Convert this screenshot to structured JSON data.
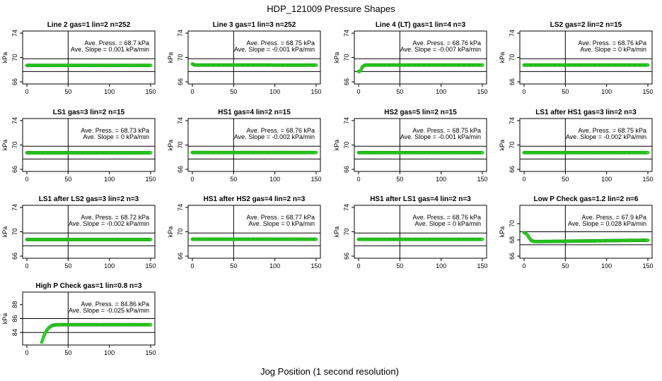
{
  "title": "HDP_121009  Pressure Shapes",
  "xlabel": "Jog Position (1 second resolution)",
  "colors": {
    "points": "#33dd22",
    "point_stroke": "#119911",
    "lines": "#000000"
  },
  "chart_data": [
    {
      "type": "scatter",
      "title": "Line 2 gas=1 lin=2 n=252",
      "ylabel": "kPa",
      "xlim": [
        0,
        150
      ],
      "ylim": [
        66,
        74
      ],
      "x_ticks": [
        0,
        50,
        100,
        150
      ],
      "y_ticks": [
        66,
        70,
        74
      ],
      "hlines": [
        69.8,
        67.7
      ],
      "vline": 50,
      "annotation": [
        "Ave. Press. = 68.7  kPa",
        "Ave. Slope = 0.001  kPa/min"
      ],
      "series": [
        {
          "x": [
            0,
            150
          ],
          "y": [
            68.7,
            68.7
          ]
        }
      ]
    },
    {
      "type": "scatter",
      "title": "Line 3 gas=1 lin=3 n=252",
      "ylabel": "kPa",
      "xlim": [
        0,
        150
      ],
      "ylim": [
        66,
        74
      ],
      "x_ticks": [
        0,
        50,
        100,
        150
      ],
      "y_ticks": [
        66,
        70,
        74
      ],
      "hlines": [
        69.8,
        67.7
      ],
      "vline": 50,
      "annotation": [
        "Ave. Press. = 68.75  kPa",
        "Ave. Slope = -0.001  kPa/min"
      ],
      "series": [
        {
          "x": [
            0,
            1,
            2,
            3,
            4,
            150
          ],
          "y": [
            68.95,
            68.85,
            68.8,
            68.78,
            68.76,
            68.75
          ]
        }
      ]
    },
    {
      "type": "scatter",
      "title": "Line 4 (LT) gas=1 lin=4 n=3",
      "ylabel": "kPa",
      "xlim": [
        0,
        150
      ],
      "ylim": [
        66,
        74
      ],
      "x_ticks": [
        0,
        50,
        100,
        150
      ],
      "y_ticks": [
        66,
        70,
        74
      ],
      "hlines": [
        69.8,
        67.7
      ],
      "vline": 50,
      "annotation": [
        "Ave. Press. = 68.76  kPa",
        "Ave. Slope = -0.007  kPa/min"
      ],
      "series": [
        {
          "x": [
            0,
            1,
            2,
            3,
            4,
            5,
            6,
            7,
            8,
            10,
            150
          ],
          "y": [
            67.7,
            67.7,
            67.8,
            68.0,
            68.3,
            68.5,
            68.6,
            68.7,
            68.75,
            68.76,
            68.76
          ]
        }
      ]
    },
    {
      "type": "scatter",
      "title": "LS2 gas=2 lin=2 n=15",
      "ylabel": "kPa",
      "xlim": [
        0,
        150
      ],
      "ylim": [
        66,
        74
      ],
      "x_ticks": [
        0,
        50,
        100,
        150
      ],
      "y_ticks": [
        66,
        70,
        74
      ],
      "hlines": [
        69.8,
        67.7
      ],
      "vline": 50,
      "annotation": [
        "Ave. Press. = 68.76  kPa",
        "Ave. Slope = 0  kPa/min"
      ],
      "series": [
        {
          "x": [
            0,
            150
          ],
          "y": [
            68.76,
            68.76
          ]
        }
      ]
    },
    {
      "type": "scatter",
      "title": "LS1 gas=3 lin=2 n=15",
      "ylabel": "kPa",
      "xlim": [
        0,
        150
      ],
      "ylim": [
        66,
        74
      ],
      "x_ticks": [
        0,
        50,
        100,
        150
      ],
      "y_ticks": [
        66,
        70,
        74
      ],
      "hlines": [
        69.8,
        67.7
      ],
      "vline": 50,
      "annotation": [
        "Ave. Press. = 68.73  kPa",
        "Ave. Slope = 0  kPa/min"
      ],
      "series": [
        {
          "x": [
            0,
            150
          ],
          "y": [
            68.73,
            68.73
          ]
        }
      ]
    },
    {
      "type": "scatter",
      "title": "HS1 gas=4 lin=2 n=15",
      "ylabel": "kPa",
      "xlim": [
        0,
        150
      ],
      "ylim": [
        66,
        74
      ],
      "x_ticks": [
        0,
        50,
        100,
        150
      ],
      "y_ticks": [
        66,
        70,
        74
      ],
      "hlines": [
        69.8,
        67.7
      ],
      "vline": 50,
      "annotation": [
        "Ave. Press. = 68.76  kPa",
        "Ave. Slope = -0.002  kPa/min"
      ],
      "series": [
        {
          "x": [
            0,
            150
          ],
          "y": [
            68.76,
            68.76
          ]
        }
      ]
    },
    {
      "type": "scatter",
      "title": "HS2 gas=5 lin=2 n=15",
      "ylabel": "kPa",
      "xlim": [
        0,
        150
      ],
      "ylim": [
        66,
        74
      ],
      "x_ticks": [
        0,
        50,
        100,
        150
      ],
      "y_ticks": [
        66,
        70,
        74
      ],
      "hlines": [
        69.8,
        67.7
      ],
      "vline": 50,
      "annotation": [
        "Ave. Press. = 68.75  kPa",
        "Ave. Slope = -0.001  kPa/min"
      ],
      "series": [
        {
          "x": [
            0,
            150
          ],
          "y": [
            68.75,
            68.75
          ]
        }
      ]
    },
    {
      "type": "scatter",
      "title": "LS1 after HS1 gas=3 lin=2 n=3",
      "ylabel": "kPa",
      "xlim": [
        0,
        150
      ],
      "ylim": [
        66,
        74
      ],
      "x_ticks": [
        0,
        50,
        100,
        150
      ],
      "y_ticks": [
        66,
        70,
        74
      ],
      "hlines": [
        69.8,
        67.7
      ],
      "vline": 50,
      "annotation": [
        "Ave. Press. = 68.75  kPa",
        "Ave. Slope = -0.002  kPa/min"
      ],
      "series": [
        {
          "x": [
            0,
            150
          ],
          "y": [
            68.75,
            68.75
          ]
        }
      ]
    },
    {
      "type": "scatter",
      "title": "LS1 after LS2 gas=3 lin=2 n=3",
      "ylabel": "kPa",
      "xlim": [
        0,
        150
      ],
      "ylim": [
        66,
        74
      ],
      "x_ticks": [
        0,
        50,
        100,
        150
      ],
      "y_ticks": [
        66,
        70,
        74
      ],
      "hlines": [
        69.8,
        67.7
      ],
      "vline": 50,
      "annotation": [
        "Ave. Press. = 68.72  kPa",
        "Ave. Slope = -0.002  kPa/min"
      ],
      "series": [
        {
          "x": [
            0,
            150
          ],
          "y": [
            68.72,
            68.72
          ]
        }
      ]
    },
    {
      "type": "scatter",
      "title": "HS1 after HS2 gas=4 lin=2 n=3",
      "ylabel": "kPa",
      "xlim": [
        0,
        150
      ],
      "ylim": [
        66,
        74
      ],
      "x_ticks": [
        0,
        50,
        100,
        150
      ],
      "y_ticks": [
        66,
        70,
        74
      ],
      "hlines": [
        69.8,
        67.7
      ],
      "vline": 50,
      "annotation": [
        "Ave. Press. = 68.77  kPa",
        "Ave. Slope = 0  kPa/min"
      ],
      "series": [
        {
          "x": [
            0,
            150
          ],
          "y": [
            68.77,
            68.77
          ]
        }
      ]
    },
    {
      "type": "scatter",
      "title": "HS1 after LS1 gas=4 lin=2 n=3",
      "ylabel": "kPa",
      "xlim": [
        0,
        150
      ],
      "ylim": [
        66,
        74
      ],
      "x_ticks": [
        0,
        50,
        100,
        150
      ],
      "y_ticks": [
        66,
        70,
        74
      ],
      "hlines": [
        69.8,
        67.7
      ],
      "vline": 50,
      "annotation": [
        "Ave. Press. = 68.76  kPa",
        "Ave. Slope = 0  kPa/min"
      ],
      "series": [
        {
          "x": [
            0,
            150
          ],
          "y": [
            68.76,
            68.76
          ]
        }
      ]
    },
    {
      "type": "scatter",
      "title": "Low P Check gas=1.2 lin=2 n=6",
      "ylabel": "kPa",
      "xlim": [
        0,
        150
      ],
      "ylim": [
        66,
        72
      ],
      "x_ticks": [
        0,
        50,
        100,
        150
      ],
      "y_ticks": [
        66,
        68,
        70
      ],
      "hlines": [
        69.0,
        67.4
      ],
      "vline": 50,
      "annotation": [
        "Ave. Press. = 67.9  kPa",
        "Ave. Slope = 0.028  kPa/min"
      ],
      "series": [
        {
          "x": [
            0,
            2,
            4,
            6,
            8,
            10,
            14,
            20,
            40,
            60,
            80,
            100,
            120,
            150
          ],
          "y": [
            68.9,
            68.8,
            68.6,
            68.3,
            68.0,
            67.85,
            67.8,
            67.8,
            67.82,
            67.85,
            67.87,
            67.9,
            67.93,
            67.95
          ]
        }
      ]
    },
    {
      "type": "scatter",
      "title": "High P Check gas=1 lin=0.8 n=3",
      "ylabel": "kPa",
      "xlim": [
        0,
        150
      ],
      "ylim": [
        82.5,
        89.5
      ],
      "x_ticks": [
        0,
        50,
        100,
        150
      ],
      "y_ticks": [
        84,
        86,
        88
      ],
      "hlines": [
        86.0,
        84.0
      ],
      "vline": 50,
      "annotation": [
        "Ave. Press. = 84.86  kPa",
        "Ave. Slope = -0.025  kPa/min"
      ],
      "series": [
        {
          "x": [
            18,
            20,
            22,
            24,
            26,
            28,
            30,
            32,
            35,
            40,
            60,
            100,
            150
          ],
          "y": [
            82.6,
            83.3,
            83.9,
            84.3,
            84.6,
            84.8,
            84.95,
            85.05,
            85.1,
            85.12,
            85.12,
            85.12,
            85.12
          ]
        }
      ]
    }
  ]
}
